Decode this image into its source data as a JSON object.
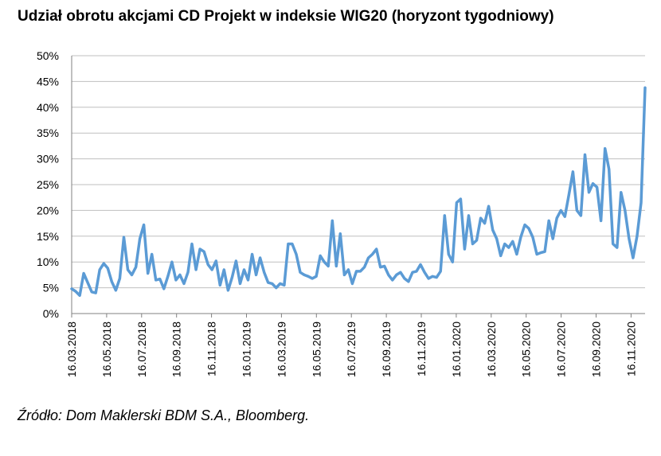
{
  "title": "Udział obrotu akcjami CD Projekt w indeksie WIG20 (horyzont tygodniowy)",
  "source": "Źródło: Dom Maklerski BDM S.A., Bloomberg.",
  "colors": {
    "line": "#5b9bd5",
    "grid": "#bfbfbf",
    "axis": "#808080"
  },
  "chart_data": {
    "type": "line",
    "title": "Udział obrotu akcjami CD Projekt w indeksie WIG20 (horyzont tygodniowy)",
    "xlabel": "",
    "ylabel": "",
    "ylim": [
      0,
      0.5
    ],
    "y_ticks": [
      0,
      0.05,
      0.1,
      0.15,
      0.2,
      0.25,
      0.3,
      0.35,
      0.4,
      0.45,
      0.5
    ],
    "y_tick_labels": [
      "0%",
      "5%",
      "10%",
      "15%",
      "20%",
      "25%",
      "30%",
      "35%",
      "40%",
      "45%",
      "50%"
    ],
    "x_tick_labels": [
      "16.03.2018",
      "16.05.2018",
      "16.07.2018",
      "16.09.2018",
      "16.11.2018",
      "16.01.2019",
      "16.03.2019",
      "16.05.2019",
      "16.07.2019",
      "16.09.2019",
      "16.11.2019",
      "16.01.2020",
      "16.03.2020",
      "16.05.2020",
      "16.07.2020",
      "16.09.2020",
      "16.11.2020"
    ],
    "grid": true,
    "legend": "none",
    "series": [
      {
        "values": [
          0.048,
          0.043,
          0.035,
          0.078,
          0.06,
          0.042,
          0.04,
          0.085,
          0.097,
          0.088,
          0.062,
          0.045,
          0.068,
          0.148,
          0.085,
          0.075,
          0.09,
          0.145,
          0.172,
          0.078,
          0.115,
          0.065,
          0.067,
          0.048,
          0.072,
          0.1,
          0.065,
          0.075,
          0.058,
          0.08,
          0.135,
          0.085,
          0.125,
          0.12,
          0.095,
          0.085,
          0.102,
          0.055,
          0.085,
          0.045,
          0.07,
          0.102,
          0.058,
          0.085,
          0.065,
          0.115,
          0.075,
          0.108,
          0.08,
          0.06,
          0.058,
          0.05,
          0.058,
          0.055,
          0.135,
          0.135,
          0.115,
          0.08,
          0.075,
          0.072,
          0.068,
          0.072,
          0.112,
          0.1,
          0.092,
          0.18,
          0.092,
          0.155,
          0.075,
          0.085,
          0.058,
          0.082,
          0.082,
          0.09,
          0.108,
          0.115,
          0.125,
          0.09,
          0.092,
          0.075,
          0.065,
          0.075,
          0.08,
          0.068,
          0.062,
          0.08,
          0.082,
          0.095,
          0.08,
          0.068,
          0.072,
          0.07,
          0.082,
          0.19,
          0.115,
          0.1,
          0.215,
          0.222,
          0.125,
          0.19,
          0.135,
          0.142,
          0.185,
          0.175,
          0.208,
          0.162,
          0.145,
          0.112,
          0.135,
          0.128,
          0.14,
          0.115,
          0.148,
          0.172,
          0.165,
          0.148,
          0.115,
          0.118,
          0.12,
          0.18,
          0.145,
          0.185,
          0.2,
          0.188,
          0.23,
          0.275,
          0.2,
          0.19,
          0.308,
          0.235,
          0.252,
          0.245,
          0.18,
          0.32,
          0.28,
          0.135,
          0.128,
          0.235,
          0.2,
          0.145,
          0.108,
          0.15,
          0.215,
          0.438
        ],
        "x_start": "16.03.2018",
        "x_end": "30.11.2020",
        "frequency": "weekly"
      }
    ]
  }
}
